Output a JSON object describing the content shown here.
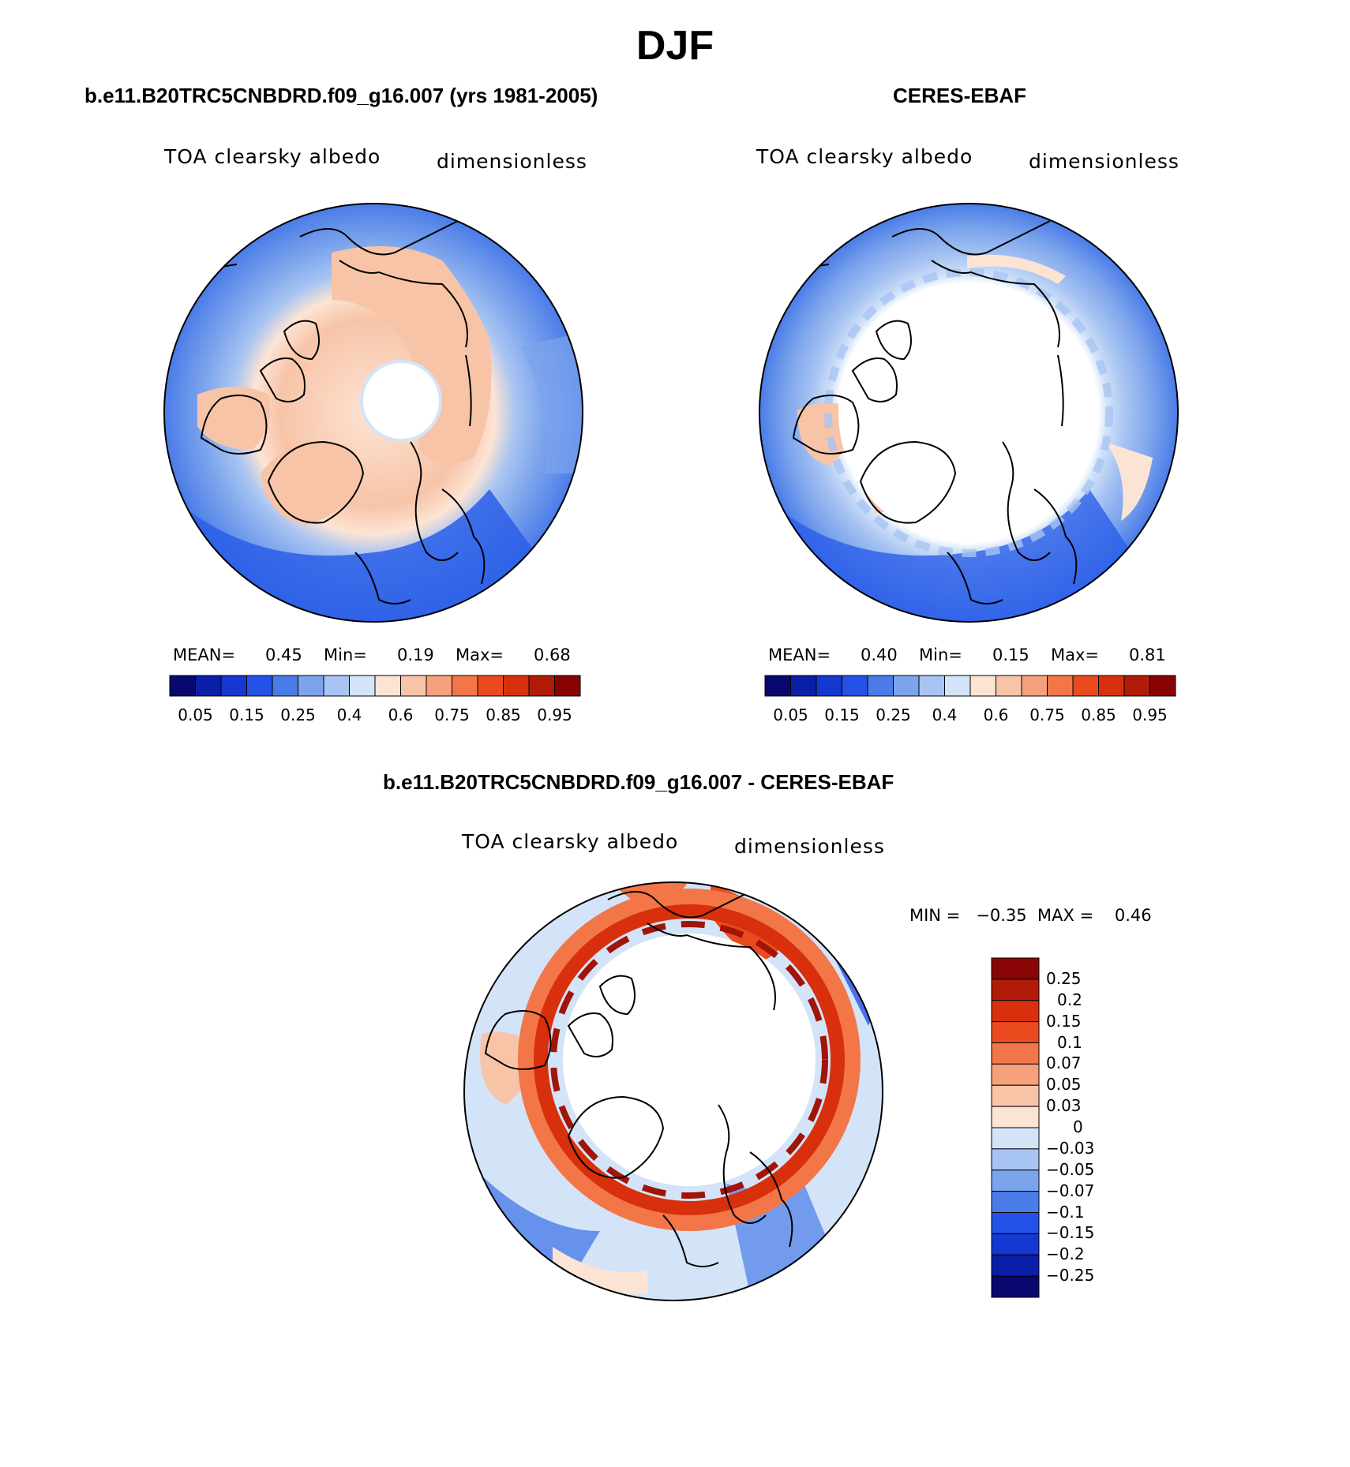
{
  "figure": {
    "title": "DJF",
    "panels": [
      {
        "title": "b.e11.B20TRC5CNBDRD.f09_g16.007 (yrs 1981-2005)",
        "variable": "TOA clearsky albedo",
        "units": "dimensionless",
        "mean_label": "MEAN=",
        "mean": "0.45",
        "min_label": "Min=",
        "min": "0.19",
        "max_label": "Max=",
        "max": "0.68"
      },
      {
        "title": "CERES-EBAF",
        "variable": "TOA clearsky albedo",
        "units": "dimensionless",
        "mean_label": "MEAN=",
        "mean": "0.40",
        "min_label": "Min=",
        "min": "0.15",
        "max_label": "Max=",
        "max": "0.81"
      },
      {
        "title": "b.e11.B20TRC5CNBDRD.f09_g16.007 - CERES-EBAF",
        "variable": "TOA clearsky albedo",
        "units": "dimensionless",
        "minmax_text": "MIN =   −0.35  MAX =    0.46"
      }
    ],
    "horizontal_colorbar": {
      "labels": [
        "0.05",
        "0.15",
        "0.25",
        "0.4",
        "0.6",
        "0.75",
        "0.85",
        "0.95"
      ],
      "colors": [
        "#08086e",
        "#0a1ea8",
        "#1438d0",
        "#2452e6",
        "#4a7ce8",
        "#7ca4ec",
        "#a8c4f2",
        "#d4e4f8",
        "#fce4d4",
        "#f8c4a8",
        "#f6a07c",
        "#f27648",
        "#ea4a1e",
        "#d8300c",
        "#b01c08",
        "#880404"
      ]
    },
    "vertical_colorbar": {
      "labels": [
        "0.25",
        "0.2",
        "0.15",
        "0.1",
        "0.07",
        "0.05",
        "0.03",
        "0",
        "−0.03",
        "−0.05",
        "−0.07",
        "−0.1",
        "−0.15",
        "−0.2",
        "−0.25"
      ],
      "colors": [
        "#8a0606",
        "#b01c08",
        "#d8300c",
        "#ea4a1e",
        "#f27648",
        "#f6a07c",
        "#f8c4a8",
        "#fce4d4",
        "#d4e4f8",
        "#a8c4f2",
        "#7ca4ec",
        "#4a7ce8",
        "#2452e6",
        "#1438d0",
        "#0a1ea8",
        "#08086e"
      ]
    },
    "map_colors": {
      "ocean_low": "#2a5ee8",
      "ocean_mid": "#5a8cec",
      "ocean_light": "#a8c4f2",
      "pale_blue": "#d4e4f8",
      "land_peach": "#f8c4a8",
      "land_pale": "#fce4d4",
      "ring_red": "#d8300c",
      "ring_dark": "#a0140a",
      "ring_orange": "#f27648",
      "missing": "#ffffff",
      "coast": "#000000"
    }
  }
}
